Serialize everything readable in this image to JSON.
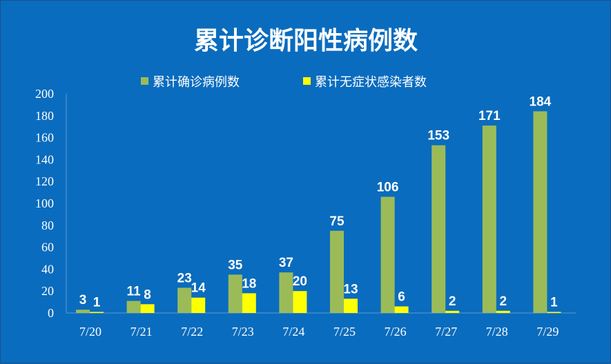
{
  "chart_data": {
    "type": "bar",
    "title": "累计诊断阳性病例数",
    "categories": [
      "7/20",
      "7/21",
      "7/22",
      "7/23",
      "7/24",
      "7/25",
      "7/26",
      "7/27",
      "7/28",
      "7/29"
    ],
    "series": [
      {
        "name": "累计确诊病例数",
        "values": [
          3,
          11,
          23,
          35,
          37,
          75,
          106,
          153,
          171,
          184
        ],
        "color": "#9bbb59"
      },
      {
        "name": "累计无症状感染者数",
        "values": [
          1,
          8,
          14,
          18,
          20,
          13,
          6,
          2,
          2,
          1
        ],
        "color": "#ffff00"
      }
    ],
    "ylim": [
      0,
      200
    ],
    "yticks": [
      0,
      20,
      40,
      60,
      80,
      100,
      120,
      140,
      160,
      180,
      200
    ],
    "grid": false,
    "legend": "top",
    "background": "#0a6cbe"
  }
}
